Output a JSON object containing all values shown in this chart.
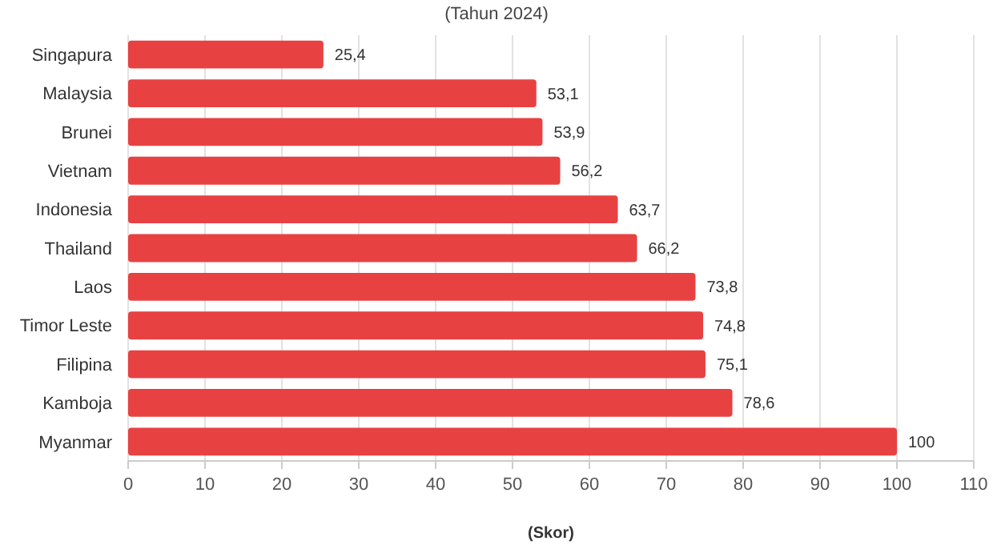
{
  "chart_data": {
    "type": "bar",
    "orientation": "horizontal",
    "subtitle": "(Tahun 2024)",
    "xlabel": "(Skor)",
    "categories": [
      "Singapura",
      "Malaysia",
      "Brunei",
      "Vietnam",
      "Indonesia",
      "Thailand",
      "Laos",
      "Timor Leste",
      "Filipina",
      "Kamboja",
      "Myanmar"
    ],
    "values": [
      25.4,
      53.1,
      53.9,
      56.2,
      63.7,
      66.2,
      73.8,
      74.8,
      75.1,
      78.6,
      100
    ],
    "value_labels": [
      "25,4",
      "53,1",
      "53,9",
      "56,2",
      "63,7",
      "66,2",
      "73,8",
      "74,8",
      "75,1",
      "78,6",
      "100"
    ],
    "color": "#e84142",
    "xlim": [
      0,
      110
    ],
    "xticks": [
      0,
      10,
      20,
      30,
      40,
      50,
      60,
      70,
      80,
      90,
      100,
      110
    ],
    "grid": "x"
  }
}
